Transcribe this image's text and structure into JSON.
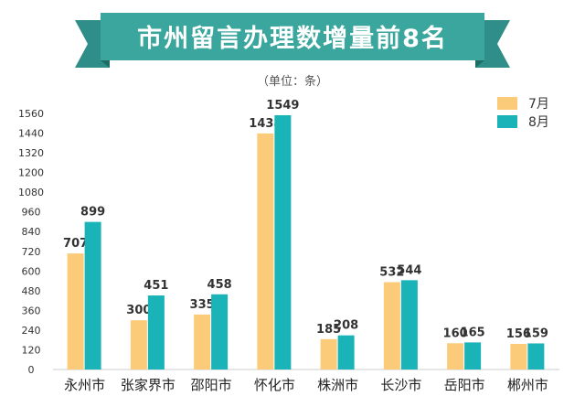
{
  "title": "市州留言办理数增量前8名",
  "unit": "（单位：条）",
  "colors": {
    "banner": "#3aa69d",
    "banner_dark": "#2a7d76",
    "series_7": "#fbcb7a",
    "series_8": "#1ab3b8"
  },
  "chart_data": {
    "type": "bar",
    "title": "市州留言办理数增量前8名",
    "ylim": [
      0,
      1560
    ],
    "yticks": [
      0,
      120,
      240,
      360,
      480,
      600,
      720,
      840,
      960,
      1080,
      1200,
      1320,
      1440,
      1560
    ],
    "categories": [
      "永州市",
      "张家界市",
      "邵阳市",
      "怀化市",
      "株洲市",
      "长沙市",
      "岳阳市",
      "郴州市"
    ],
    "series": [
      {
        "name": "7月",
        "values": [
          707,
          300,
          335,
          1438,
          185,
          532,
          160,
          156
        ]
      },
      {
        "name": "8月",
        "values": [
          899,
          451,
          458,
          1549,
          208,
          544,
          165,
          159
        ]
      }
    ],
    "legend": "top-right",
    "grid": false
  }
}
